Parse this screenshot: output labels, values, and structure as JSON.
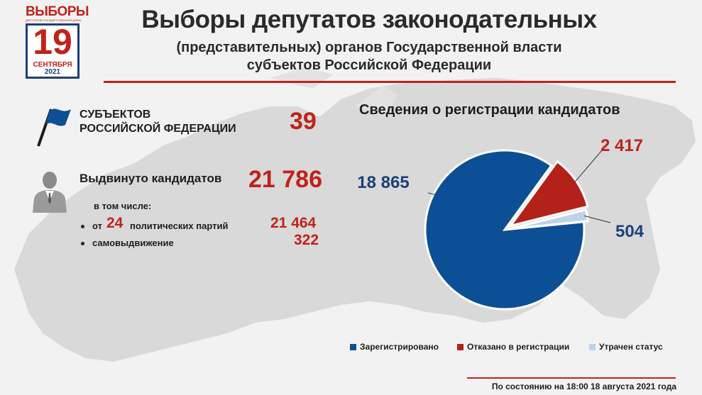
{
  "logo": {
    "title": "ВЫБОРЫ",
    "subtitle": "ДЕПУТАТОВ ГОСУДАРСТВЕННОЙ ДУМЫ",
    "day": "19",
    "month": "СЕНТЯБРЯ",
    "year": "2021"
  },
  "header": {
    "title": "Выборы депутатов законодательных",
    "subtitle_line1": "(представительных) органов Государственной власти",
    "subtitle_line2": "субъектов Российской Федерации"
  },
  "stats": {
    "subjects_label_1": "СУБЪЕКТОВ",
    "subjects_label_2": "РОССИЙСКОЙ ФЕДЕРАЦИИ",
    "subjects_value": "39",
    "candidates_label": "Выдвинуто кандидатов",
    "candidates_value": "21 786",
    "including_label": "в том числе:",
    "parties_prefix": "от",
    "parties_count": "24",
    "parties_suffix": "политических партий",
    "parties_value": "21 464",
    "self_label": "самовыдвижение",
    "self_value": "322"
  },
  "colors": {
    "red": "#c0221b",
    "blue": "#0d4f94",
    "light_blue": "#bdd3ea",
    "dark_blue_text": "#1c3f7a"
  },
  "chart_data": {
    "type": "pie",
    "title": "Сведения о регистрации кандидатов",
    "slices": [
      {
        "name": "Зарегистрировано",
        "value": 18865,
        "label": "18 865",
        "color": "#0d4f94"
      },
      {
        "name": "Отказано в регистрации",
        "value": 2417,
        "label": "2 417",
        "color": "#b32118"
      },
      {
        "name": "Утрачен статус",
        "value": 504,
        "label": "504",
        "color": "#bdd3ea"
      }
    ],
    "legend_position": "bottom"
  },
  "footer": {
    "note": "По состоянию на 18:00 18 августа 2021 года"
  }
}
